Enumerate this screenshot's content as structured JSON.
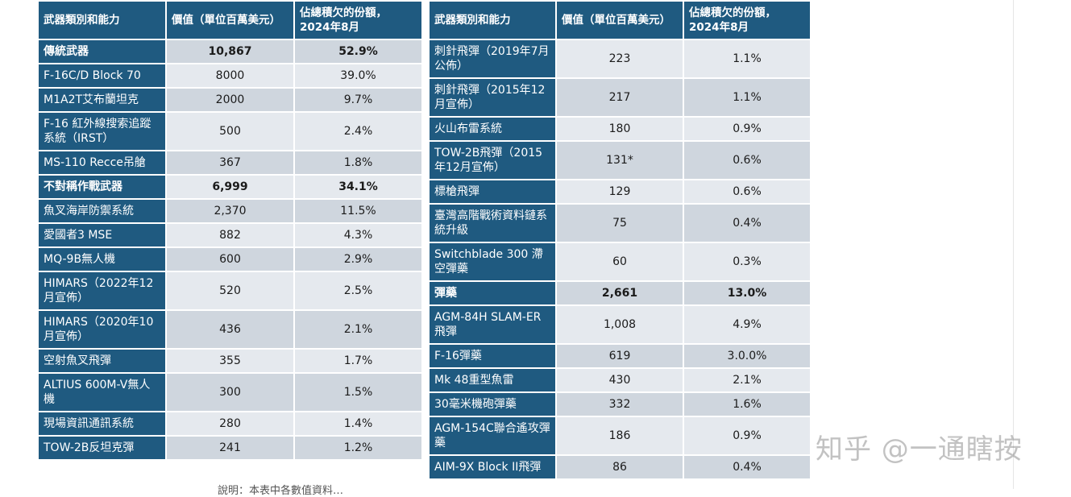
{
  "headers": [
    "武器類別和能力",
    "價值（單位百萬美元）",
    "佔總積欠的份額，2024年8月"
  ],
  "left_rows": [
    {
      "name": "傳統武器",
      "value": "10,867",
      "share": "52.9%",
      "cat": true
    },
    {
      "name": "F-16C/D Block 70",
      "value": "8000",
      "share": "39.0%"
    },
    {
      "name": "M1A2T艾布蘭坦克",
      "value": "2000",
      "share": "9.7%"
    },
    {
      "name": "F-16 紅外線搜索追蹤系統（IRST）",
      "value": "500",
      "share": "2.4%"
    },
    {
      "name": "MS-110 Recce吊艙",
      "value": "367",
      "share": "1.8%"
    },
    {
      "name": "不對稱作戰武器",
      "value": "6,999",
      "share": "34.1%",
      "cat": true
    },
    {
      "name": "魚叉海岸防禦系統",
      "value": "2,370",
      "share": "11.5%"
    },
    {
      "name": "愛國者3 MSE",
      "value": "882",
      "share": "4.3%"
    },
    {
      "name": "MQ-9B無人機",
      "value": "600",
      "share": "2.9%"
    },
    {
      "name": "HIMARS（2022年12月宣佈）",
      "value": "520",
      "share": "2.5%"
    },
    {
      "name": "HIMARS（2020年10月宣佈）",
      "value": "436",
      "share": "2.1%"
    },
    {
      "name": "空射魚叉飛彈",
      "value": "355",
      "share": "1.7%"
    },
    {
      "name": "ALTIUS 600M-V無人機",
      "value": "300",
      "share": "1.5%"
    },
    {
      "name": "現場資訊通訊系統",
      "value": "280",
      "share": "1.4%"
    },
    {
      "name": "TOW-2B反坦克彈",
      "value": "241",
      "share": "1.2%"
    }
  ],
  "right_rows": [
    {
      "name": "刺針飛彈（2019年7月公佈）",
      "value": "223",
      "share": "1.1%"
    },
    {
      "name": "刺針飛彈（2015年12月宣佈）",
      "value": "217",
      "share": "1.1%"
    },
    {
      "name": "火山布雷系統",
      "value": "180",
      "share": "0.9%"
    },
    {
      "name": "TOW-2B飛彈（2015年12月宣佈）",
      "value": "131*",
      "share": "0.6%"
    },
    {
      "name": "標槍飛彈",
      "value": "129",
      "share": "0.6%"
    },
    {
      "name": "臺灣高階戰術資料鏈系統升級",
      "value": "75",
      "share": "0.4%"
    },
    {
      "name": "Switchblade 300 滯空彈藥",
      "value": "60",
      "share": "0.3%"
    },
    {
      "name": "彈藥",
      "value": "2,661",
      "share": "13.0%",
      "cat": true
    },
    {
      "name": "AGM-84H SLAM-ER飛彈",
      "value": "1,008",
      "share": "4.9%"
    },
    {
      "name": "F-16彈藥",
      "value": "619",
      "share": "3.0.0%"
    },
    {
      "name": "Mk 48重型魚雷",
      "value": "430",
      "share": "2.1%"
    },
    {
      "name": "30毫米機砲彈藥",
      "value": "332",
      "share": "1.6%"
    },
    {
      "name": "AGM-154C聯合遙攻彈藥",
      "value": "186",
      "share": "0.9%"
    },
    {
      "name": "AIM-9X Block II飛彈",
      "value": "86",
      "share": "0.4%"
    }
  ],
  "watermark": "知乎 @一通瞎按",
  "footer_note": "說明：本表中各數值資料…"
}
